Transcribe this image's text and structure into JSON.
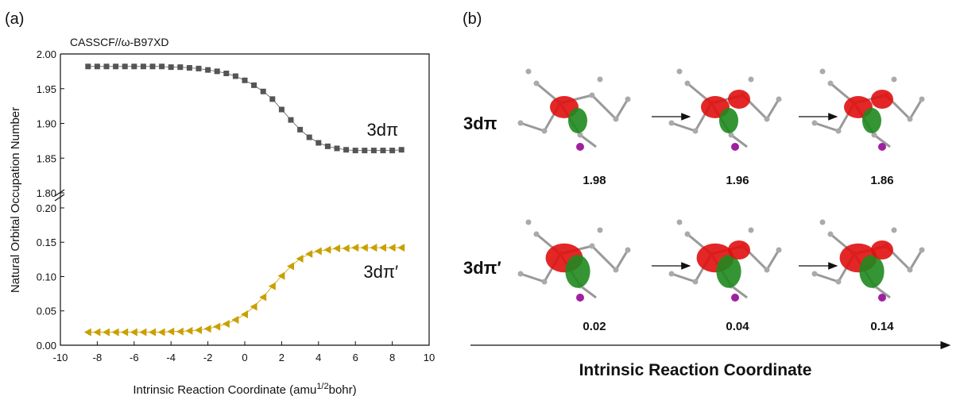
{
  "chart_data": {
    "type": "scatter",
    "panel_label": "(a)",
    "annotation": "CASSCF//ω-B97XD",
    "x_label": [
      "Intrinsic Reaction Coordinate (amu",
      "1/2",
      "bohr)"
    ],
    "y_label": "Natural Orbital Occupation Number",
    "xlim": [
      -10,
      10
    ],
    "xticks": [
      -10,
      -8,
      -6,
      -4,
      -2,
      0,
      2,
      4,
      6,
      8,
      10
    ],
    "ylim": [
      0,
      0.215
    ],
    "yticks": [
      {
        "value": 0,
        "label": "0.00"
      },
      {
        "value": 0.05,
        "label": "0.05"
      },
      {
        "value": 0.1,
        "label": "0.10"
      },
      {
        "value": 0.15,
        "label": "0.15"
      },
      {
        "value": 0.2,
        "label": "0.20"
      }
    ],
    "ylim_upper": [
      1.8,
      2.0
    ],
    "yticks_upper": [
      {
        "value": 1.8,
        "label": "1.80"
      },
      {
        "value": 1.85,
        "label": "1.85"
      },
      {
        "value": 1.9,
        "label": "1.90"
      },
      {
        "value": 1.95,
        "label": "1.95"
      },
      {
        "value": 2.0,
        "label": "2.00"
      }
    ],
    "x": [
      -8.5,
      -8,
      -7.5,
      -7,
      -6.5,
      -6,
      -5.5,
      -5,
      -4.5,
      -4,
      -3.5,
      -3,
      -2.5,
      -2,
      -1.5,
      -1,
      -0.5,
      0,
      0.5,
      1,
      1.5,
      2,
      2.5,
      3,
      3.5,
      4,
      4.5,
      5,
      5.5,
      6,
      6.5,
      7,
      7.5,
      8,
      8.5
    ],
    "series": [
      {
        "name": "3dπ",
        "color": "#555555",
        "marker": "square",
        "axis": "upper",
        "values": [
          1.982,
          1.982,
          1.982,
          1.982,
          1.982,
          1.982,
          1.982,
          1.982,
          1.982,
          1.981,
          1.981,
          1.98,
          1.979,
          1.977,
          1.975,
          1.972,
          1.968,
          1.962,
          1.955,
          1.946,
          1.935,
          1.92,
          1.905,
          1.891,
          1.88,
          1.872,
          1.867,
          1.864,
          1.862,
          1.861,
          1.861,
          1.861,
          1.861,
          1.861,
          1.862
        ]
      },
      {
        "name": "3dπ′",
        "color": "#c9a000",
        "marker": "triangle-left",
        "axis": "lower",
        "values": [
          0.019,
          0.019,
          0.019,
          0.019,
          0.019,
          0.019,
          0.019,
          0.019,
          0.019,
          0.02,
          0.02,
          0.021,
          0.022,
          0.024,
          0.027,
          0.031,
          0.037,
          0.045,
          0.056,
          0.07,
          0.086,
          0.101,
          0.115,
          0.126,
          0.133,
          0.137,
          0.139,
          0.141,
          0.141,
          0.142,
          0.142,
          0.142,
          0.142,
          0.142,
          0.142
        ]
      }
    ]
  },
  "panel_b": {
    "label": "(b)",
    "rows": [
      {
        "name": "3dπ",
        "values": [
          1.98,
          1.96,
          1.86
        ]
      },
      {
        "name": "3dπ′",
        "values": [
          0.02,
          0.04,
          0.14
        ]
      }
    ],
    "axis_title": "Intrinsic Reaction Coordinate"
  }
}
